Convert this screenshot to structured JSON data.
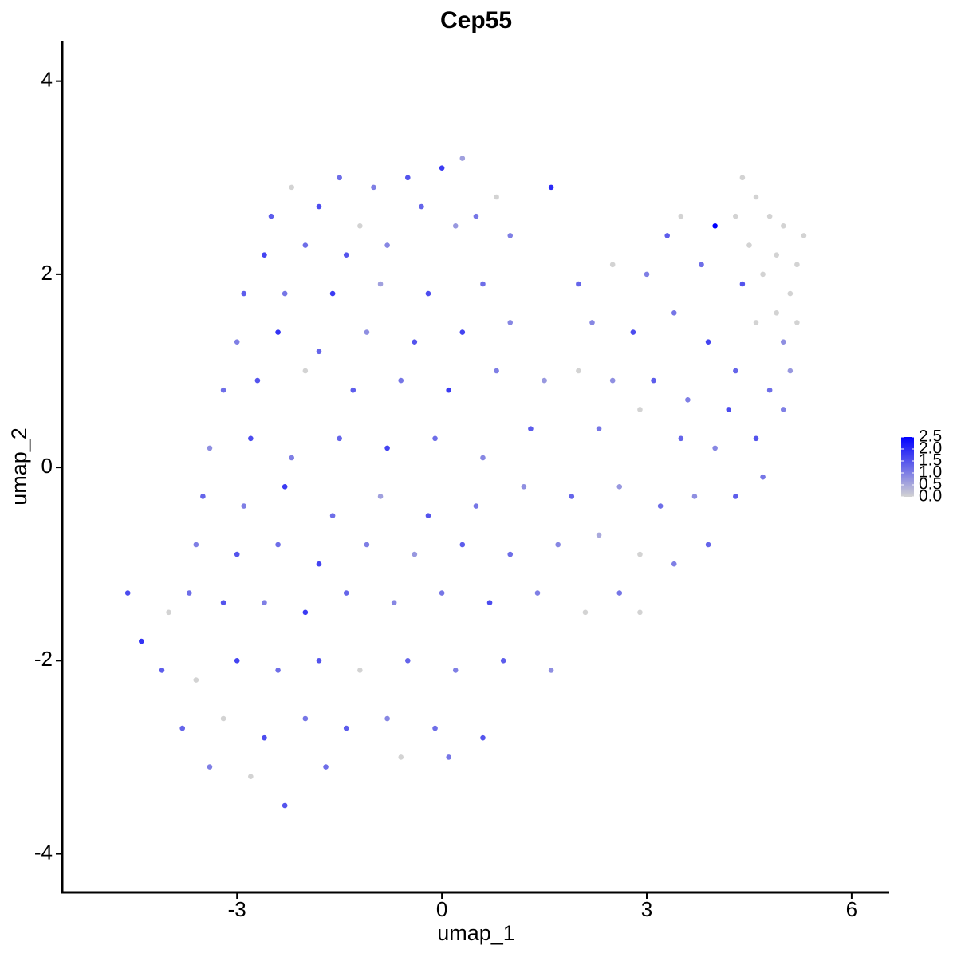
{
  "chart_data": {
    "type": "scatter",
    "title": "Cep55",
    "x_label": "umap_1",
    "y_label": "umap_2",
    "x": [
      -2.2,
      -1.5,
      -1.0,
      -0.5,
      0,
      0.3,
      0.8,
      1.6,
      -2.5,
      -1.8,
      -1.2,
      -0.3,
      0.5,
      -2.6,
      -2.0,
      -1.4,
      -0.8,
      0.2,
      1.0,
      -2.9,
      -2.3,
      -1.6,
      -0.9,
      -0.2,
      0.6,
      -3.0,
      -2.4,
      -1.8,
      -1.1,
      -0.4,
      0.3,
      1.0,
      -3.2,
      -2.7,
      -2.0,
      -1.3,
      -0.6,
      0.1,
      0.8,
      1.5,
      -3.4,
      -2.8,
      -2.2,
      -1.5,
      -0.8,
      -0.1,
      0.6,
      1.3,
      -3.5,
      -2.9,
      -2.3,
      -1.6,
      -0.9,
      -0.2,
      0.5,
      1.2,
      1.9,
      -3.6,
      -3.0,
      -2.4,
      -1.8,
      -1.1,
      -0.4,
      0.3,
      1.0,
      1.7,
      2.3,
      -4.6,
      -4.4,
      -4.0,
      -3.7,
      -3.2,
      -2.6,
      -2.0,
      -1.4,
      -0.7,
      0,
      0.7,
      1.4,
      2.1,
      -4.1,
      -3.6,
      -3.0,
      -2.4,
      -1.8,
      -1.2,
      -0.5,
      0.2,
      0.9,
      1.6,
      -3.8,
      -3.2,
      -2.6,
      -2.0,
      -1.4,
      -0.8,
      -0.1,
      0.6,
      -3.4,
      -2.8,
      -2.3,
      -1.7,
      -0.6,
      0.1,
      2.0,
      2.5,
      3.0,
      3.3,
      3.5,
      4.0,
      3.8,
      4.4,
      2.2,
      2.8,
      3.4,
      3.9,
      4.3,
      2.0,
      2.5,
      3.1,
      3.6,
      4.2,
      4.8,
      5.1,
      2.3,
      2.9,
      3.5,
      4.0,
      4.6,
      5.0,
      2.6,
      3.2,
      3.7,
      4.3,
      4.7,
      2.9,
      3.4,
      3.9,
      2.6,
      2.9,
      4.4,
      4.6,
      4.8,
      5.0,
      5.3,
      4.5,
      4.9,
      5.2,
      4.7,
      5.1,
      4.9,
      4.6,
      5.2,
      4.3,
      5.0
    ],
    "values": [
      2.9,
      3.0,
      2.9,
      3.0,
      3.1,
      3.2,
      2.8,
      2.9,
      2.6,
      2.7,
      2.5,
      2.7,
      2.6,
      2.2,
      2.3,
      2.2,
      2.3,
      2.5,
      2.4,
      1.8,
      1.8,
      1.8,
      1.9,
      1.8,
      1.9,
      1.3,
      1.4,
      1.2,
      1.4,
      1.3,
      1.4,
      1.5,
      0.8,
      0.9,
      1.0,
      0.8,
      0.9,
      0.8,
      1.0,
      0.9,
      0.2,
      0.3,
      0.1,
      0.3,
      0.2,
      0.3,
      0.1,
      0.4,
      -0.3,
      -0.4,
      -0.2,
      -0.5,
      -0.3,
      -0.5,
      -0.4,
      -0.2,
      -0.3,
      -0.8,
      -0.9,
      -0.8,
      -1.0,
      -0.8,
      -0.9,
      -0.8,
      -0.9,
      -0.8,
      -0.7,
      -1.3,
      -1.8,
      -1.5,
      -1.3,
      -1.4,
      -1.4,
      -1.5,
      -1.3,
      -1.4,
      -1.3,
      -1.4,
      -1.3,
      -1.5,
      -2.1,
      -2.2,
      -2.0,
      -2.1,
      -2.0,
      -2.1,
      -2.0,
      -2.1,
      -2.0,
      -2.1,
      -2.7,
      -2.6,
      -2.8,
      -2.6,
      -2.7,
      -2.6,
      -2.7,
      -2.8,
      -3.1,
      -3.2,
      -3.5,
      -3.1,
      -3.0,
      -3.0,
      1.9,
      2.1,
      2.0,
      2.4,
      2.6,
      2.5,
      2.1,
      1.9,
      1.5,
      1.4,
      1.6,
      1.3,
      1.0,
      1.0,
      0.9,
      0.9,
      0.7,
      0.6,
      0.8,
      1.0,
      0.4,
      0.6,
      0.3,
      0.2,
      0.3,
      0.6,
      -0.2,
      -0.4,
      -0.3,
      -0.3,
      -0.1,
      -0.9,
      -1.0,
      -0.8,
      -1.3,
      -1.5,
      3.0,
      2.8,
      2.6,
      2.5,
      2.4,
      2.3,
      2.2,
      2.1,
      2.0,
      1.8,
      1.6,
      1.5,
      1.5,
      2.6,
      1.3
    ],
    "expression": [
      0,
      1.2,
      1.0,
      1.5,
      1.8,
      0.6,
      0,
      2.0,
      1.4,
      1.6,
      0,
      1.3,
      1.1,
      1.7,
      1.2,
      1.5,
      0.9,
      0.7,
      1.0,
      1.4,
      1.1,
      1.8,
      0.6,
      1.6,
      1.2,
      1.0,
      1.9,
      1.3,
      0.8,
      1.5,
      1.7,
      0.9,
      1.2,
      1.5,
      0,
      1.4,
      1.1,
      1.8,
      1.0,
      0.7,
      0.8,
      1.6,
      1.0,
      1.3,
      1.7,
      1.2,
      0.9,
      1.4,
      1.3,
      1.0,
      1.8,
      1.2,
      0.6,
      1.5,
      1.1,
      0.8,
      1.3,
      1.0,
      1.5,
      1.2,
      1.7,
      1.0,
      0.7,
      1.4,
      1.2,
      0.9,
      0.5,
      1.6,
      1.9,
      0,
      1.2,
      1.5,
      1.0,
      1.8,
      1.3,
      0.9,
      1.1,
      1.6,
      1.0,
      0,
      1.4,
      0,
      1.7,
      1.2,
      1.5,
      0,
      1.3,
      1.0,
      1.4,
      0.8,
      1.3,
      0,
      1.6,
      1.1,
      1.4,
      0.9,
      1.2,
      1.5,
      1.0,
      0,
      1.5,
      1.2,
      0,
      1.1,
      1.3,
      0,
      1.0,
      1.4,
      0,
      2.5,
      1.2,
      1.5,
      0.9,
      1.6,
      1.1,
      1.7,
      1.3,
      0,
      0.8,
      1.4,
      1.0,
      1.6,
      1.2,
      0.7,
      1.1,
      0,
      1.3,
      0.9,
      1.5,
      1.0,
      0.7,
      1.2,
      0.8,
      1.4,
      1.1,
      0,
      1.0,
      1.3,
      1.1,
      0,
      0,
      0,
      0,
      0,
      0,
      0,
      0,
      0,
      0,
      0,
      0,
      0,
      0,
      0,
      0.8
    ],
    "xlim": [
      -5.56,
      6.55
    ],
    "ylim": [
      -4.4,
      4.41
    ],
    "xticks": [
      -3,
      0,
      3,
      6
    ],
    "yticks": [
      -4,
      -2,
      0,
      2,
      4
    ],
    "grid": false,
    "color_low": "#d3d3d3",
    "color_high": "#0000ff",
    "colorbar_lim": [
      0,
      2.5
    ],
    "colorbar_ticks": [
      {
        "value": 0,
        "label": "0.0"
      },
      {
        "value": 0.5,
        "label": "0.5"
      },
      {
        "value": 1,
        "label": "1.0"
      },
      {
        "value": 1.5,
        "label": "1.5"
      },
      {
        "value": 2,
        "label": "2.0"
      },
      {
        "value": 2.5,
        "label": "2.5"
      }
    ],
    "legend_position": "right"
  }
}
